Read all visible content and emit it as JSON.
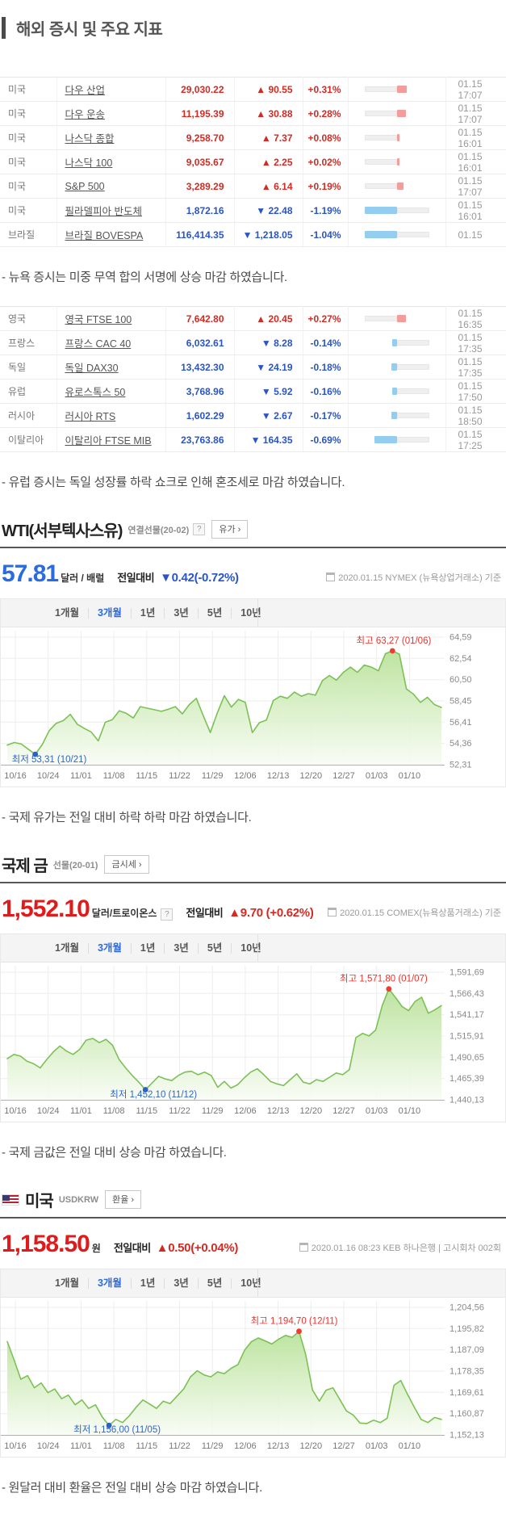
{
  "page": {
    "title": "해외 증시 및 주요 지표"
  },
  "notes": {
    "us": "- 뉴욕 증시는 미중 무역 합의 서명에 상승 마감 하였습니다.",
    "eu": "- 유럽 증시는 독일 성장률 하락 쇼크로 인해 혼조세로 마감 하였습니다.",
    "wti": "- 국제 유가는 전일 대비 하락 하락 마감 하였습니다.",
    "gold": "- 국제 금값은 전일 대비 상승 마감 하였습니다.",
    "usd": "- 원달러 대비 환율은 전일 대비 상승 마감 하였습니다."
  },
  "colors": {
    "up": "#d42a22",
    "down": "#2a55c8",
    "price_blue": "#2a6cdf",
    "price_red": "#e01b1b",
    "chart_line": "#7cc155",
    "chart_fill_top": "#b9e29a",
    "high_dot": "#f03b30",
    "low_dot": "#2e5fc4"
  },
  "tables": [
    {
      "rows": [
        {
          "country": "미국",
          "name": "다우 산업",
          "price": "29,030.22",
          "change": "90.55",
          "pct": "+0.31%",
          "dir": "up",
          "time": "01.15 17:07"
        },
        {
          "country": "미국",
          "name": "다우 운송",
          "price": "11,195.39",
          "change": "30.88",
          "pct": "+0.28%",
          "dir": "up",
          "time": "01.15 17:07"
        },
        {
          "country": "미국",
          "name": "나스닥 종합",
          "price": "9,258.70",
          "change": "7.37",
          "pct": "+0.08%",
          "dir": "up",
          "time": "01.15 16:01"
        },
        {
          "country": "미국",
          "name": "나스닥 100",
          "price": "9,035.67",
          "change": "2.25",
          "pct": "+0.02%",
          "dir": "up",
          "time": "01.15 16:01"
        },
        {
          "country": "미국",
          "name": "S&P 500",
          "price": "3,289.29",
          "change": "6.14",
          "pct": "+0.19%",
          "dir": "up",
          "time": "01.15 17:07"
        },
        {
          "country": "미국",
          "name": "필라델피아 반도체",
          "price": "1,872.16",
          "change": "22.48",
          "pct": "-1.19%",
          "dir": "down",
          "time": "01.15 16:01"
        },
        {
          "country": "브라질",
          "name": "브라질 BOVESPA",
          "price": "116,414.35",
          "change": "1,218.05",
          "pct": "-1.04%",
          "dir": "down",
          "time": "01.15"
        }
      ]
    },
    {
      "rows": [
        {
          "country": "영국",
          "name": "영국 FTSE 100",
          "price": "7,642.80",
          "change": "20.45",
          "pct": "+0.27%",
          "dir": "up",
          "time": "01.15 16:35"
        },
        {
          "country": "프랑스",
          "name": "프랑스 CAC 40",
          "price": "6,032.61",
          "change": "8.28",
          "pct": "-0.14%",
          "dir": "down",
          "time": "01.15 17:35"
        },
        {
          "country": "독일",
          "name": "독일 DAX30",
          "price": "13,432.30",
          "change": "24.19",
          "pct": "-0.18%",
          "dir": "down",
          "time": "01.15 17:35"
        },
        {
          "country": "유럽",
          "name": "유로스톡스 50",
          "price": "3,768.96",
          "change": "5.92",
          "pct": "-0.16%",
          "dir": "down",
          "time": "01.15 17:50"
        },
        {
          "country": "러시아",
          "name": "러시아 RTS",
          "price": "1,602.29",
          "change": "2.67",
          "pct": "-0.17%",
          "dir": "down",
          "time": "01.15 18:50"
        },
        {
          "country": "이탈리아",
          "name": "이탈리아 FTSE MIB",
          "price": "23,763.86",
          "change": "164.35",
          "pct": "-0.69%",
          "dir": "down",
          "time": "01.15 17:25"
        }
      ]
    }
  ],
  "sections": [
    {
      "title": "WTI(서부텍사스유)",
      "subtitle": "연결선물(20-02)",
      "help": "?",
      "button": "유가 ›",
      "price": "57.81",
      "unit": "달러 / 배럴",
      "change_label": "전일대비",
      "change": "▼0.42(-0.72%)",
      "dir": "down",
      "meta": "2020.01.15  NYMEX (뉴욕상업거래소) 기준",
      "tabs": [
        "1개월",
        "3개월",
        "1년",
        "3년",
        "5년",
        "10년"
      ],
      "active_tab": "3개월"
    },
    {
      "title": "국제 금",
      "subtitle": "선물(20-01)",
      "help": "?",
      "button": "금시세 ›",
      "price": "1,552.10",
      "unit": "달러/트로이온스",
      "change_label": "전일대비",
      "change": "▲9.70 (+0.62%)",
      "dir": "up",
      "meta": "2020.01.15  COMEX(뉴욕상품거래소) 기준",
      "tabs": [
        "1개월",
        "3개월",
        "1년",
        "3년",
        "5년",
        "10년"
      ],
      "active_tab": "3개월"
    },
    {
      "title": "미국",
      "subtitle": "USDKRW",
      "button": "환율 ›",
      "price": "1,158.50",
      "unit": "원",
      "change_label": "전일대비",
      "change": "▲0.50(+0.04%)",
      "dir": "up",
      "meta": "2020.01.16 08:23  KEB 하나은행  |  고시회차 002회",
      "tabs": [
        "1개월",
        "3개월",
        "1년",
        "3년",
        "5년",
        "10년"
      ],
      "active_tab": "3개월"
    }
  ],
  "chart_data": [
    {
      "type": "area",
      "title": "WTI(서부텍사스유) 3개월",
      "x_labels": [
        "10/16",
        "10/24",
        "11/01",
        "11/08",
        "11/15",
        "11/22",
        "11/29",
        "12/06",
        "12/13",
        "12/20",
        "12/27",
        "01/03",
        "01/10"
      ],
      "y_tick_labels": [
        "64,59",
        "62,54",
        "60,50",
        "58,45",
        "56,41",
        "54,36",
        "52,31"
      ],
      "ylim": [
        52.31,
        64.59
      ],
      "high_label": "최고 63,27 (01/06)",
      "low_label": "최저 53,31 (10/21)",
      "high_value": 63.27,
      "low_value": 53.31,
      "values": [
        54.2,
        54.45,
        54.3,
        53.8,
        53.31,
        54.25,
        55.6,
        56.3,
        56.55,
        57.15,
        56.2,
        55.8,
        55.45,
        54.6,
        56.4,
        56.65,
        57.5,
        57.25,
        56.8,
        57.9,
        57.75,
        57.6,
        57.45,
        57.65,
        57.9,
        57.2,
        58.1,
        58.7,
        57.0,
        55.4,
        57.3,
        58.95,
        57.85,
        58.6,
        58.3,
        55.4,
        56.35,
        56.6,
        58.5,
        58.9,
        58.7,
        59.3,
        58.9,
        59.15,
        59.0,
        60.4,
        60.9,
        60.45,
        61.2,
        61.7,
        61.2,
        61.9,
        61.7,
        61.35,
        63.0,
        63.27,
        62.95,
        59.6,
        59.1,
        58.3,
        58.8,
        58.1,
        57.81
      ]
    },
    {
      "type": "area",
      "title": "국제 금 3개월",
      "x_labels": [
        "10/16",
        "10/24",
        "11/01",
        "11/08",
        "11/15",
        "11/22",
        "11/29",
        "12/06",
        "12/13",
        "12/20",
        "12/27",
        "01/03",
        "01/10"
      ],
      "y_tick_labels": [
        "1,591,69",
        "1,566,43",
        "1,541,17",
        "1,515,91",
        "1,490,65",
        "1,465,39",
        "1,440,13"
      ],
      "ylim": [
        1440.13,
        1591.69
      ],
      "high_label": "최고 1,571,80 (01/07)",
      "low_label": "최저 1,452,10 (11/12)",
      "high_value": 1571.8,
      "low_value": 1452.1,
      "values": [
        1489,
        1494,
        1492,
        1486,
        1483,
        1478,
        1488,
        1497,
        1504,
        1498,
        1494,
        1500,
        1511,
        1513,
        1508,
        1512,
        1505,
        1488,
        1478,
        1469,
        1461,
        1452.1,
        1460,
        1468,
        1465,
        1463,
        1469,
        1473,
        1474,
        1470,
        1473,
        1469,
        1455,
        1462,
        1454,
        1458,
        1466,
        1473,
        1477,
        1470,
        1462,
        1459,
        1457,
        1464,
        1471,
        1461,
        1459,
        1464,
        1462,
        1467,
        1472,
        1470,
        1476,
        1514,
        1519,
        1516,
        1523,
        1552,
        1571.8,
        1562,
        1551,
        1546,
        1557,
        1562,
        1543,
        1547,
        1552.1
      ]
    },
    {
      "type": "area",
      "title": "미국 USDKRW 3개월",
      "x_labels": [
        "10/16",
        "10/24",
        "11/01",
        "11/08",
        "11/15",
        "11/22",
        "11/29",
        "12/06",
        "12/13",
        "12/20",
        "12/27",
        "01/03",
        "01/10"
      ],
      "y_tick_labels": [
        "1,204,56",
        "1,195,82",
        "1,187,09",
        "1,178,35",
        "1,169,61",
        "1,160,87",
        "1,152,13"
      ],
      "ylim": [
        1152.13,
        1204.56
      ],
      "high_label": "최고 1,194,70 (12/11)",
      "low_label": "최저 1,156,00 (11/05)",
      "high_value": 1194.7,
      "low_value": 1156.0,
      "values": [
        1190.5,
        1183,
        1175,
        1176.5,
        1171.5,
        1173.5,
        1169.5,
        1171,
        1167,
        1168.5,
        1164.5,
        1166.5,
        1163,
        1164.5,
        1159.5,
        1156.0,
        1158.5,
        1157.2,
        1160,
        1163.5,
        1166.5,
        1164.8,
        1163,
        1166,
        1165,
        1168,
        1171,
        1176,
        1178.5,
        1176.8,
        1176,
        1178,
        1177.3,
        1179.5,
        1181,
        1187,
        1190.5,
        1192,
        1190.8,
        1189.5,
        1191.5,
        1193,
        1192.2,
        1194.7,
        1185,
        1170.5,
        1166,
        1170.5,
        1171.5,
        1166.8,
        1162,
        1160.3,
        1157,
        1156.8,
        1158.2,
        1157.2,
        1159,
        1172.5,
        1174.5,
        1168.8,
        1163.5,
        1158.5,
        1157.2,
        1159.3,
        1158.5
      ]
    }
  ]
}
